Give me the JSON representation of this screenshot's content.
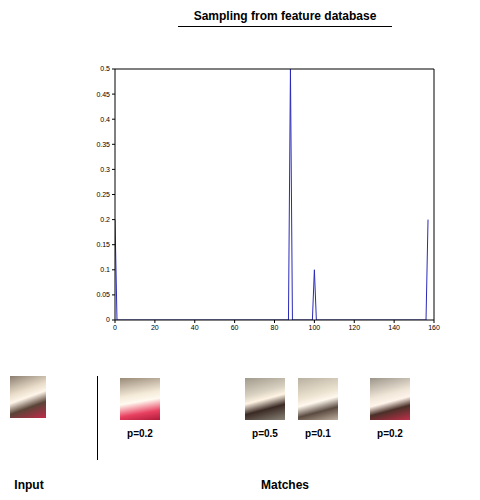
{
  "chart_data": {
    "type": "line",
    "title": "Sampling from feature database",
    "x": [
      0,
      1,
      87,
      88,
      89,
      99,
      100,
      101,
      156,
      157
    ],
    "values": [
      0.2,
      0,
      0,
      0.5,
      0,
      0,
      0.1,
      0,
      0,
      0.2
    ],
    "color": "#2a2ab8",
    "xlim": [
      0,
      160
    ],
    "ylim": [
      0,
      0.5
    ],
    "xticks": [
      0,
      20,
      40,
      60,
      80,
      100,
      120,
      140,
      160
    ],
    "yticks": [
      0,
      0.05,
      0.1,
      0.15,
      0.2,
      0.25,
      0.3,
      0.35,
      0.4,
      0.45,
      0.5
    ],
    "grid": false
  },
  "panels": {
    "input": {
      "label": "Input"
    },
    "matches": {
      "label": "Matches",
      "items": [
        "p=0.2",
        "p=0.5",
        "p=0.1",
        "p=0.2"
      ]
    }
  }
}
